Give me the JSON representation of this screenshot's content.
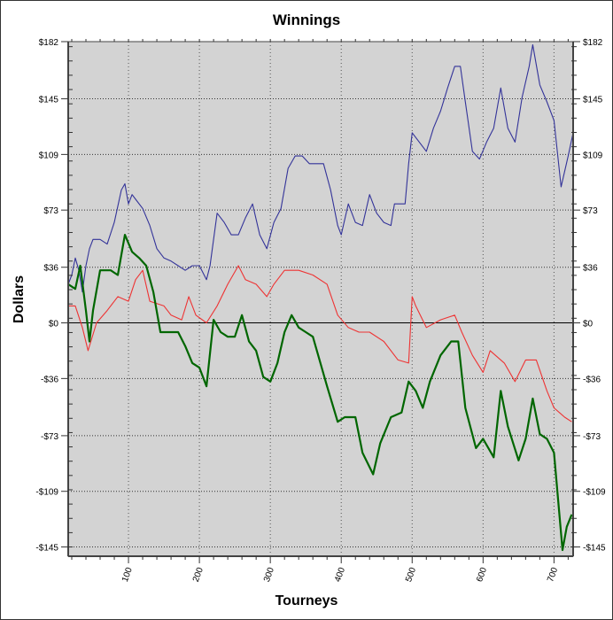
{
  "chart_data": {
    "type": "line",
    "title": "Winnings",
    "xlabel": "Tourneys",
    "ylabel": "Dollars",
    "xlim": [
      15,
      727
    ],
    "ylim": [
      -151,
      182
    ],
    "xticks": [
      100,
      200,
      300,
      400,
      500,
      600,
      700
    ],
    "yticks": [
      182,
      145,
      109,
      73,
      36,
      0,
      -36,
      -73,
      -109,
      -145
    ],
    "ytick_labels": [
      "$182",
      "$145",
      "$109",
      "$73",
      "$36",
      "$0",
      "-$36",
      "-$73",
      "-$109",
      "-$145"
    ],
    "grid": true,
    "background": "#d3d3d3",
    "series": [
      {
        "color": "#333399",
        "x": [
          15,
          20,
          25,
          30,
          35,
          40,
          45,
          50,
          60,
          70,
          80,
          90,
          95,
          100,
          105,
          110,
          120,
          130,
          140,
          150,
          160,
          170,
          180,
          190,
          200,
          210,
          215,
          225,
          235,
          245,
          255,
          265,
          275,
          285,
          295,
          305,
          315,
          325,
          335,
          345,
          355,
          365,
          375,
          385,
          395,
          400,
          410,
          420,
          430,
          440,
          450,
          460,
          470,
          475,
          490,
          495,
          500,
          510,
          520,
          530,
          540,
          550,
          560,
          568,
          575,
          585,
          595,
          605,
          615,
          625,
          635,
          645,
          655,
          665,
          670,
          680,
          690,
          700,
          710,
          720,
          727
        ],
        "y": [
          25,
          31,
          42,
          34,
          20,
          37,
          48,
          54,
          54,
          51,
          65,
          86,
          90,
          77,
          83,
          80,
          74,
          63,
          48,
          42,
          40,
          37,
          34,
          37,
          37,
          28,
          37,
          71,
          65,
          57,
          57,
          68,
          77,
          57,
          48,
          65,
          74,
          100,
          108,
          108,
          103,
          103,
          103,
          86,
          63,
          57,
          77,
          65,
          63,
          83,
          71,
          65,
          63,
          77,
          77,
          103,
          123,
          117,
          111,
          126,
          137,
          152,
          166,
          166,
          143,
          111,
          106,
          117,
          126,
          152,
          126,
          117,
          146,
          166,
          180,
          154,
          143,
          131,
          88,
          108,
          123
        ]
      },
      {
        "color": "#ee3333",
        "x": [
          15,
          25,
          35,
          43,
          55,
          70,
          85,
          100,
          110,
          120,
          130,
          150,
          160,
          175,
          185,
          195,
          210,
          225,
          240,
          255,
          265,
          280,
          295,
          305,
          320,
          340,
          360,
          380,
          395,
          410,
          425,
          440,
          460,
          480,
          495,
          500,
          505,
          520,
          540,
          560,
          570,
          585,
          600,
          610,
          630,
          645,
          660,
          675,
          690,
          700,
          715,
          725
        ],
        "y": [
          11,
          11,
          -3,
          -18,
          0,
          8,
          17,
          14,
          28,
          34,
          14,
          11,
          5,
          2,
          17,
          5,
          0,
          11,
          25,
          37,
          28,
          25,
          17,
          25,
          34,
          34,
          31,
          25,
          5,
          -3,
          -6,
          -6,
          -12,
          -24,
          -26,
          17,
          11,
          -3,
          2,
          5,
          -6,
          -21,
          -32,
          -18,
          -26,
          -38,
          -24,
          -24,
          -44,
          -55,
          -61,
          -64
        ]
      },
      {
        "color": "#006600",
        "x": [
          15,
          25,
          32,
          40,
          45,
          50,
          60,
          75,
          85,
          95,
          105,
          115,
          125,
          135,
          145,
          160,
          170,
          180,
          190,
          200,
          210,
          220,
          230,
          240,
          250,
          260,
          270,
          280,
          290,
          300,
          310,
          320,
          330,
          340,
          350,
          360,
          380,
          395,
          405,
          420,
          430,
          445,
          455,
          470,
          485,
          495,
          505,
          515,
          525,
          540,
          555,
          565,
          575,
          590,
          600,
          615,
          625,
          635,
          650,
          660,
          670,
          680,
          690,
          700,
          712,
          718,
          725
        ],
        "y": [
          25,
          22,
          37,
          8,
          -12,
          8,
          34,
          34,
          31,
          57,
          46,
          42,
          37,
          20,
          -6,
          -6,
          -6,
          -15,
          -26,
          -29,
          -41,
          2,
          -6,
          -9,
          -9,
          5,
          -12,
          -18,
          -35,
          -38,
          -26,
          -6,
          5,
          -3,
          -6,
          -9,
          -41,
          -64,
          -61,
          -61,
          -84,
          -98,
          -78,
          -61,
          -58,
          -38,
          -44,
          -55,
          -38,
          -21,
          -12,
          -12,
          -55,
          -81,
          -75,
          -87,
          -44,
          -67,
          -89,
          -75,
          -49,
          -72,
          -75,
          -84,
          -147,
          -132,
          -124
        ]
      }
    ]
  }
}
